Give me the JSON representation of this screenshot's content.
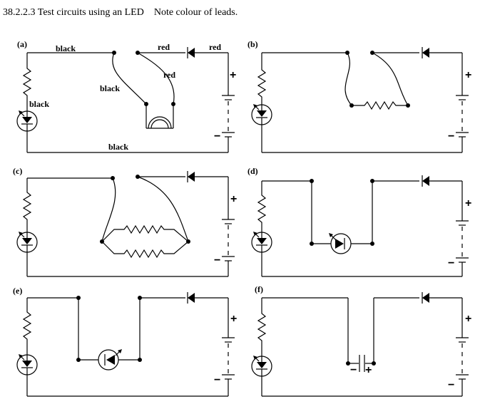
{
  "title": "38.2.2.3 Test circuits using an LED    Note colour of leads.",
  "panels": {
    "a": {
      "label": "(a)",
      "leads": {
        "top_left": "black",
        "top_right": "red",
        "far_right": "red",
        "left_lead": "black",
        "right_lead": "red",
        "led": "black",
        "bottom": "black"
      }
    },
    "b": {
      "label": "(b)"
    },
    "c": {
      "label": "(c)"
    },
    "d": {
      "label": "(d)"
    },
    "e": {
      "label": "(e)"
    },
    "f": {
      "label": "(f)"
    }
  },
  "battery_signs": {
    "plus": "+",
    "minus": "−"
  }
}
